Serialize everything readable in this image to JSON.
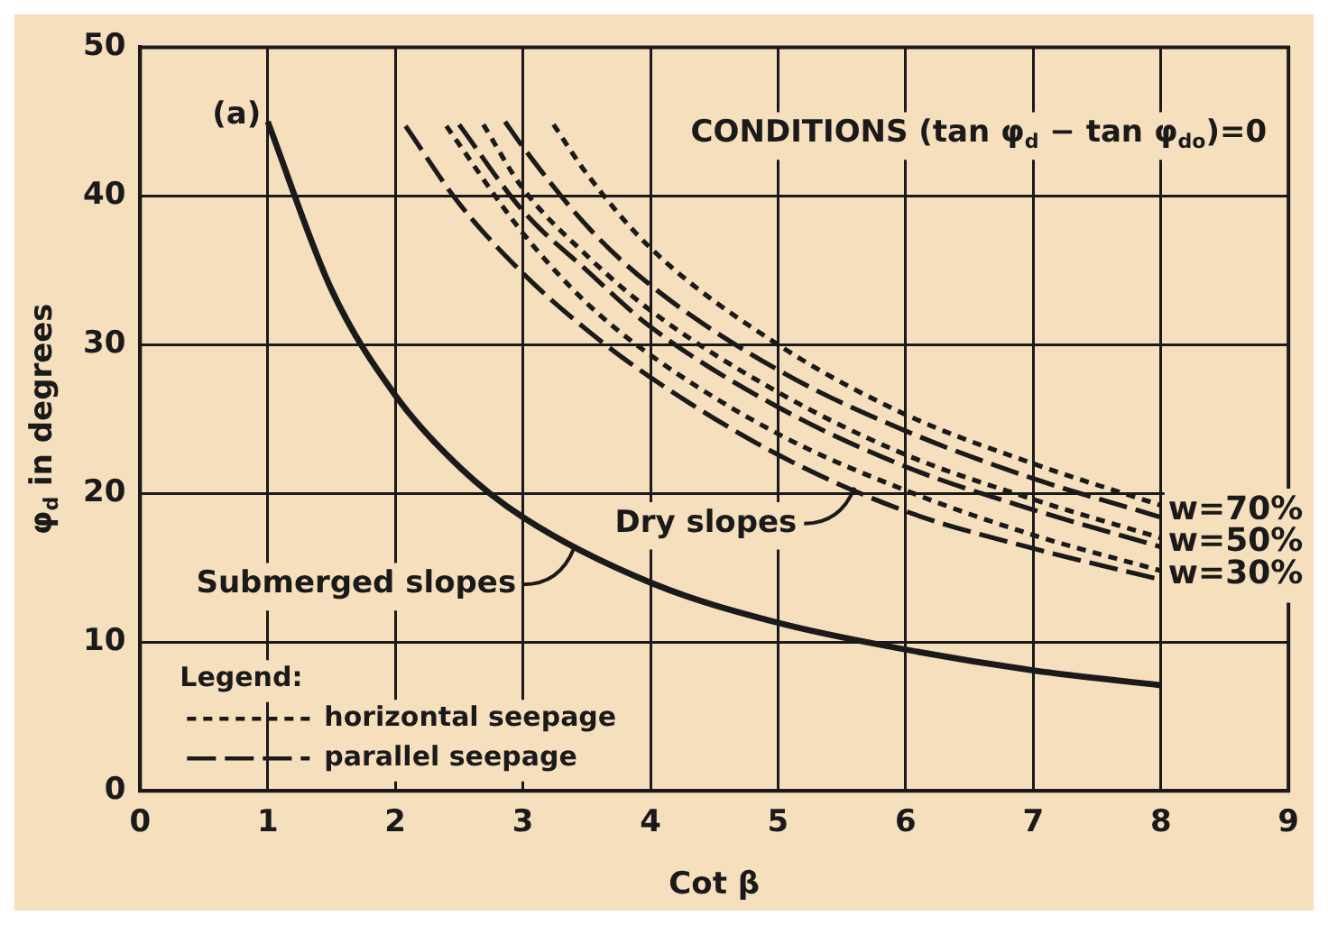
{
  "chart_data": {
    "type": "line",
    "title": "CONDITIONS (tan φ$_{d}$ − tan φ$_{do}$)=0",
    "xlabel": "Cot β",
    "ylabel": "φ$_{d}$ in degrees",
    "legend_title": "Legend:",
    "legend": "bottom left",
    "grid": true,
    "xlim": [
      0,
      9
    ],
    "ylim": [
      0,
      50
    ],
    "xticks": [
      0,
      1,
      2,
      3,
      4,
      5,
      6,
      7,
      8,
      9
    ],
    "yticks": [
      0,
      10,
      20,
      30,
      40,
      50
    ],
    "annotations": [
      "(a)",
      {
        "text": "Submerged slopes",
        "x": 3.4,
        "y": 16.3
      },
      {
        "text": "Dry slopes",
        "x": 5.6,
        "y": 20.4
      },
      {
        "text": "w=70%",
        "x": 8,
        "y": 18.8
      },
      {
        "text": "w=50%",
        "x": 8,
        "y": 16.7
      },
      {
        "text": "w=30%",
        "x": 8,
        "y": 14.5
      }
    ],
    "series": [
      {
        "color": "#1a1a1a",
        "line_style": "solid",
        "x": [
          1,
          1.5,
          2,
          2.5,
          3,
          4,
          5,
          6,
          7,
          8
        ],
        "values": [
          45,
          33.7,
          26.6,
          21.8,
          18.4,
          14,
          11.3,
          9.5,
          8.1,
          7.1
        ]
      },
      {
        "name": "horizontal seepage",
        "color": "#1a1a1a",
        "line_style": "dotted",
        "x": [
          3.24,
          3.5,
          4,
          5,
          6,
          7,
          8,
          null,
          2.69,
          3,
          3.5,
          4,
          5,
          6,
          7,
          8,
          null,
          2.4,
          3,
          3.5,
          4,
          5,
          6,
          7,
          8
        ],
        "values": [
          44.8,
          41.5,
          36.5,
          30,
          25.3,
          22,
          19.2,
          null,
          44.8,
          40.5,
          36,
          32.3,
          26.8,
          22.6,
          19.6,
          17,
          null,
          44.7,
          37.5,
          32.8,
          29.3,
          24,
          20.2,
          17.2,
          14.8
        ]
      },
      {
        "name": "parallel seepage",
        "color": "#1a1a1a",
        "line_style": "dashed",
        "x": [
          2.86,
          3,
          3.5,
          4,
          5,
          6,
          7,
          8,
          null,
          2.5,
          3,
          3.5,
          4,
          5,
          6,
          7,
          8,
          null,
          2.08,
          2.5,
          3,
          3.5,
          4,
          5,
          6,
          7,
          8
        ],
        "values": [
          45,
          43.3,
          38,
          34,
          28.3,
          24.2,
          21,
          18.4,
          null,
          44.8,
          39,
          35,
          31.2,
          25.8,
          21.8,
          18.9,
          16.4,
          null,
          44.7,
          39.5,
          34.8,
          31,
          27.8,
          22.6,
          18.8,
          16.3,
          14.2
        ]
      }
    ]
  }
}
